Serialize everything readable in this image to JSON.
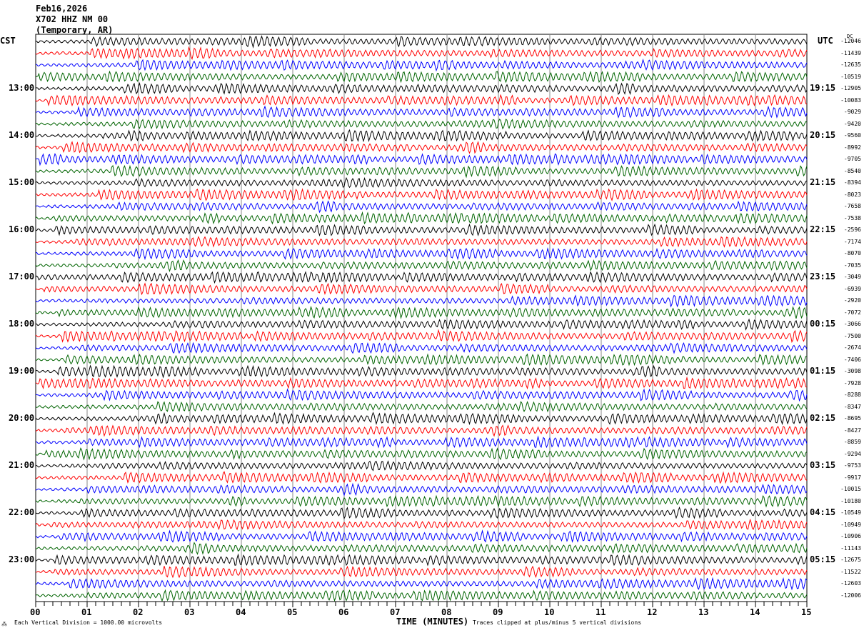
{
  "header": {
    "date": "Feb16,2026",
    "station": "X702 HHZ NM 00",
    "location": "(Temporary, AR)"
  },
  "chart_data": {
    "type": "line",
    "left_timezone": "CST",
    "right_timezone": "UTC",
    "right_header": "DC",
    "left_hour_labels": [
      "13:00",
      "14:00",
      "15:00",
      "16:00",
      "17:00",
      "18:00",
      "19:00",
      "20:00",
      "21:00",
      "22:00",
      "23:00"
    ],
    "right_hour_labels": [
      "19:15",
      "20:15",
      "21:15",
      "22:15",
      "23:15",
      "00:15",
      "01:15",
      "02:15",
      "03:15",
      "04:15",
      "05:15"
    ],
    "dc_offsets": [
      -12046,
      -11439,
      -12635,
      -10519,
      -12905,
      -10083,
      -9029,
      -9420,
      -9560,
      -8992,
      -9705,
      -8540,
      -8394,
      -8023,
      -7658,
      -7538,
      -2596,
      -7174,
      -8070,
      -7035,
      -3049,
      -6939,
      -2920,
      -7072,
      -3066,
      -7500,
      -2674,
      -7406,
      -3098,
      -7928,
      -8288,
      -8347,
      -8695,
      -8427,
      -8859,
      -9294,
      -9753,
      -9917,
      -10015,
      -10180,
      -10549,
      -10949,
      -10906,
      -11143,
      -12675,
      -11522,
      -12603,
      -12006
    ],
    "trace_colors": [
      "#000000",
      "#ff0000",
      "#0000ff",
      "#006400"
    ],
    "x_ticks": [
      "00",
      "01",
      "02",
      "03",
      "04",
      "05",
      "06",
      "07",
      "08",
      "09",
      "10",
      "11",
      "12",
      "13",
      "14",
      "15"
    ],
    "xlabel": "TIME (MINUTES)",
    "xlim": [
      0,
      15
    ],
    "grid": "vertical at each minute",
    "scale_note": "Each Vertical Division = 1000.00 microvolts",
    "clip_note": "Traces clipped at plus/minus 5 vertical divisions"
  }
}
